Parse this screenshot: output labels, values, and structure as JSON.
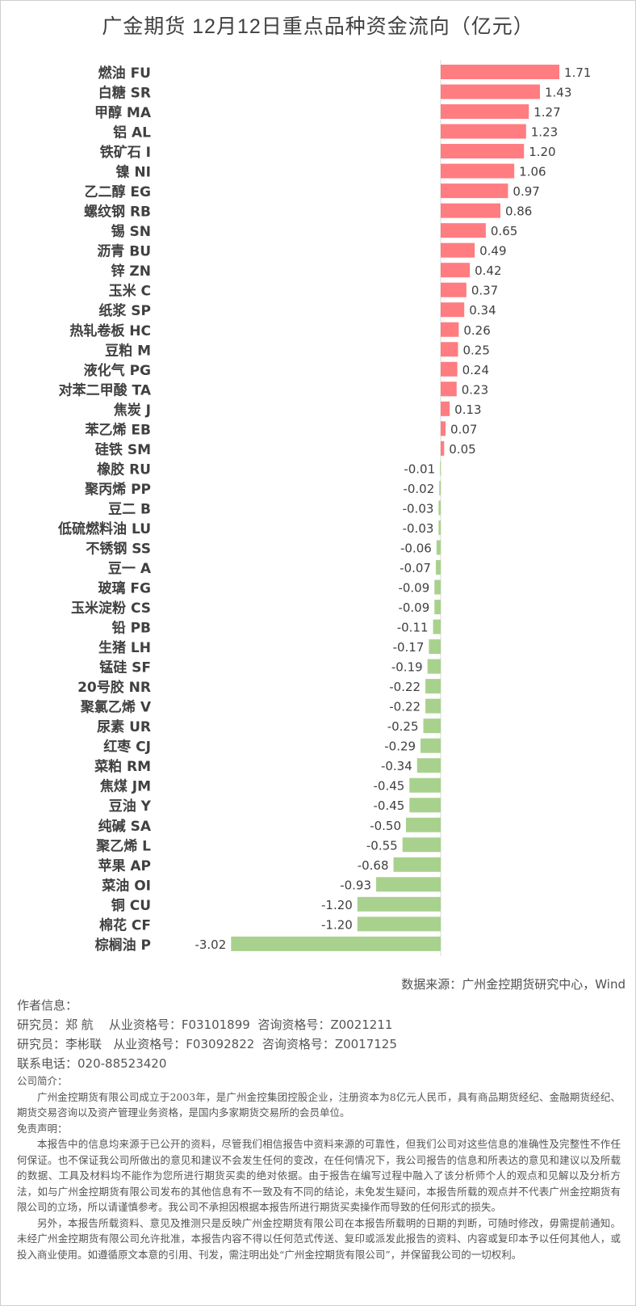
{
  "chart_data": {
    "type": "bar",
    "orientation": "horizontal",
    "title": "广金期货 12月12日重点品种资金流向（亿元）",
    "unit": "亿元",
    "xlim": [
      -3.02,
      1.71
    ],
    "colors": {
      "positive": "#ff7c80",
      "negative": "#a9d18e",
      "axis": "#d9d9d9"
    },
    "categories": [
      "燃油 FU",
      "白糖 SR",
      "甲醇 MA",
      "铝 AL",
      "铁矿石 I",
      "镍 NI",
      "乙二醇 EG",
      "螺纹钢 RB",
      "锡 SN",
      "沥青 BU",
      "锌 ZN",
      "玉米 C",
      "纸浆 SP",
      "热轧卷板 HC",
      "豆粕 M",
      "液化气 PG",
      "对苯二甲酸 TA",
      "焦炭 J",
      "苯乙烯 EB",
      "硅铁 SM",
      "橡胶 RU",
      "聚丙烯 PP",
      "豆二 B",
      "低硫燃料油 LU",
      "不锈钢 SS",
      "豆一 A",
      "玻璃 FG",
      "玉米淀粉 CS",
      "铅 PB",
      "生猪 LH",
      "锰硅 SF",
      "20号胶 NR",
      "聚氯乙烯 V",
      "尿素 UR",
      "红枣 CJ",
      "菜粕 RM",
      "焦煤 JM",
      "豆油 Y",
      "纯碱 SA",
      "聚乙烯 L",
      "苹果 AP",
      "菜油 OI",
      "铜 CU",
      "棉花 CF",
      "棕榈油 P"
    ],
    "values": [
      1.71,
      1.43,
      1.27,
      1.23,
      1.2,
      1.06,
      0.97,
      0.86,
      0.65,
      0.49,
      0.42,
      0.37,
      0.34,
      0.26,
      0.25,
      0.24,
      0.23,
      0.13,
      0.07,
      0.05,
      -0.01,
      -0.02,
      -0.03,
      -0.03,
      -0.06,
      -0.07,
      -0.09,
      -0.09,
      -0.11,
      -0.17,
      -0.19,
      -0.22,
      -0.22,
      -0.25,
      -0.29,
      -0.34,
      -0.45,
      -0.45,
      -0.5,
      -0.55,
      -0.68,
      -0.93,
      -1.2,
      -1.2,
      -3.02
    ]
  },
  "source": "数据来源：广州金控期货研究中心，Wind",
  "author": {
    "heading": "作者信息：",
    "researcher1": "研究员：郑 航    从业资格号：F03101899  咨询资格号：Z0021211",
    "researcher2": "研究员：李彬联   从业资格号：F03092822  咨询资格号：Z0017125",
    "phone": "联系电话：020-88523420"
  },
  "company": {
    "heading": "公司简介：",
    "text": "广州金控期货有限公司成立于2003年，是广州金控集团控股企业，注册资本为8亿元人民币，具有商品期货经纪、金融期货经纪、期货交易咨询以及资产管理业务资格，是国内多家期货交易所的会员单位。"
  },
  "disclaimer": {
    "heading": "免责声明：",
    "p1": "本报告中的信息均来源于已公开的资料，尽管我们相信报告中资料来源的可靠性，但我们公司对这些信息的准确性及完整性不作任何保证。也不保证我公司所做出的意见和建议不会发生任何的变改，在任何情况下，我公司报告的信息和所表达的意见和建议以及所载的数据、工具及材料均不能作为您所进行期货买卖的绝对依据。由于报告在编写过程中融入了该分析师个人的观点和见解以及分析方法，如与广州金控期货有限公司发布的其他信息有不一致及有不同的结论，未免发生疑问，本报告所载的观点并不代表广州金控期货有限公司的立场，所以请谨慎参考。我公司不承担因根据本报告所进行期货买卖操作而导致的任何形式的损失。",
    "p2": "另外，本报告所载资料、意见及推测只是反映广州金控期货有限公司在本报告所载明的日期的判断，可随时修改，毋需提前通知。未经广州金控期货有限公司允许批准，本报告内容不得以任何范式传送、复印或派发此报告的资料、内容或复印本予以任何其他人，或投入商业使用。如遵循原文本意的引用、刊发，需注明出处“广州金控期货有限公司”，并保留我公司的一切权利。"
  }
}
